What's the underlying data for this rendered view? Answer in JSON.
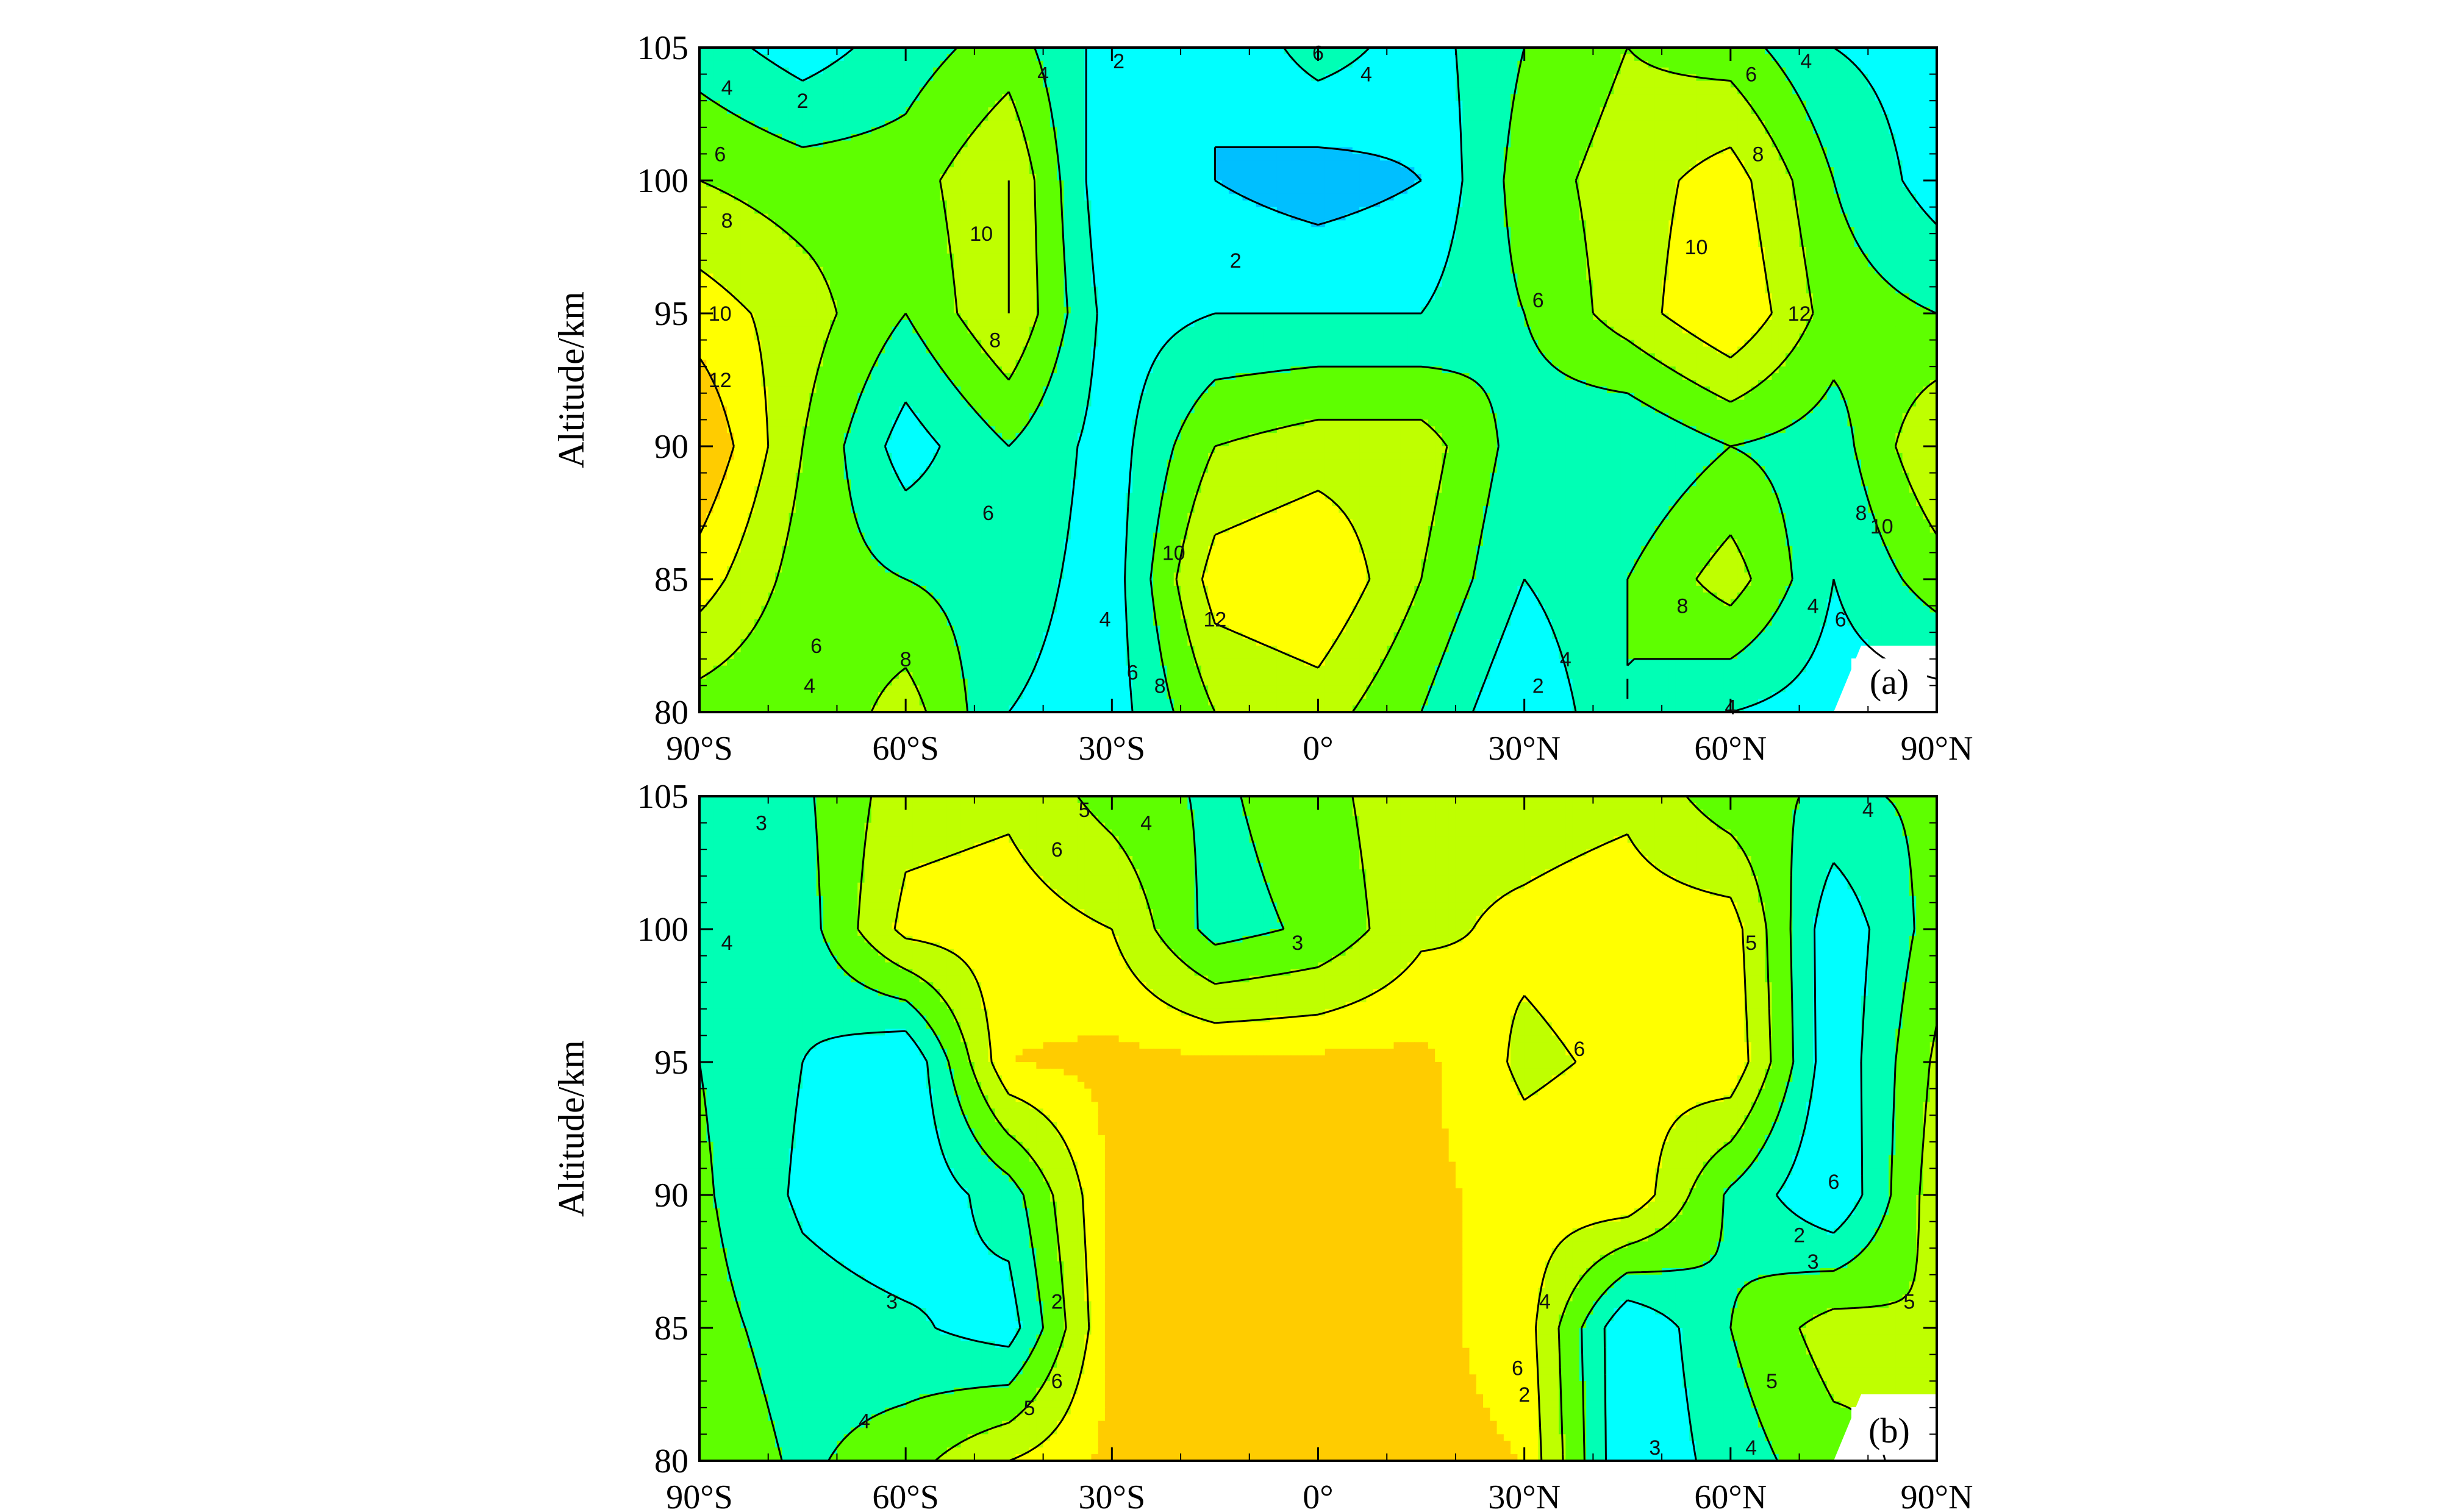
{
  "chart_data": [
    {
      "type": "contour",
      "panel_label": "(a)",
      "xlabel": "",
      "ylabel": "Altitude/km",
      "x_ticks": [
        "90°S",
        "60°S",
        "30°S",
        "0°",
        "30°N",
        "60°N",
        "90°N"
      ],
      "y_ticks": [
        "80",
        "85",
        "90",
        "95",
        "100",
        "105"
      ],
      "xlim": [
        -90,
        90
      ],
      "ylim": [
        80,
        105
      ],
      "contour_levels": [
        2,
        4,
        6,
        8,
        10,
        12
      ],
      "contour_labels": [
        {
          "text": "2",
          "lat": -75,
          "alt": 103.0
        },
        {
          "text": "4",
          "lat": -86,
          "alt": 103.5
        },
        {
          "text": "6",
          "lat": -87,
          "alt": 101.0
        },
        {
          "text": "8",
          "lat": -86,
          "alt": 98.5
        },
        {
          "text": "10",
          "lat": -87,
          "alt": 95.0
        },
        {
          "text": "12",
          "lat": -87,
          "alt": 92.5
        },
        {
          "text": "10",
          "lat": -49,
          "alt": 98.0
        },
        {
          "text": "8",
          "lat": -47,
          "alt": 94.0
        },
        {
          "text": "6",
          "lat": -48,
          "alt": 87.5
        },
        {
          "text": "8",
          "lat": -60,
          "alt": 82.0
        },
        {
          "text": "6",
          "lat": -73,
          "alt": 82.5
        },
        {
          "text": "4",
          "lat": -74,
          "alt": 81.0
        },
        {
          "text": "4",
          "lat": -40,
          "alt": 104.0
        },
        {
          "text": "2",
          "lat": -29,
          "alt": 104.5
        },
        {
          "text": "6",
          "lat": 0,
          "alt": 104.8
        },
        {
          "text": "4",
          "lat": 7,
          "alt": 104.0
        },
        {
          "text": "2",
          "lat": -12,
          "alt": 97.0
        },
        {
          "text": "4",
          "lat": -31,
          "alt": 83.5
        },
        {
          "text": "6",
          "lat": -27,
          "alt": 81.5
        },
        {
          "text": "8",
          "lat": -23,
          "alt": 81.0
        },
        {
          "text": "10",
          "lat": -21,
          "alt": 86.0
        },
        {
          "text": "12",
          "lat": -15,
          "alt": 83.5
        },
        {
          "text": "2",
          "lat": 32,
          "alt": 81.0
        },
        {
          "text": "4",
          "lat": 36,
          "alt": 82.0
        },
        {
          "text": "6",
          "lat": 32,
          "alt": 95.5
        },
        {
          "text": "10",
          "lat": 55,
          "alt": 97.5
        },
        {
          "text": "12",
          "lat": 70,
          "alt": 95.0
        },
        {
          "text": "8",
          "lat": 53,
          "alt": 84.0
        },
        {
          "text": "6",
          "lat": 63,
          "alt": 104.0
        },
        {
          "text": "4",
          "lat": 71,
          "alt": 104.5
        },
        {
          "text": "8",
          "lat": 64,
          "alt": 101.0
        },
        {
          "text": "4",
          "lat": 72,
          "alt": 84.0
        },
        {
          "text": "6",
          "lat": 76,
          "alt": 83.5
        },
        {
          "text": "8",
          "lat": 79,
          "alt": 87.5
        },
        {
          "text": "10",
          "lat": 82,
          "alt": 87.0
        },
        {
          "text": "4",
          "lat": 60,
          "alt": 80.2
        }
      ],
      "field": {
        "lat": [
          -90,
          -75,
          -60,
          -45,
          -30,
          -15,
          0,
          15,
          30,
          45,
          60,
          75,
          90
        ],
        "alt": [
          80,
          85,
          90,
          95,
          100,
          105
        ],
        "values": [
          [
            7,
            6,
            9,
            4,
            3,
            8,
            9,
            6,
            2,
            6,
            4,
            3,
            3
          ],
          [
            11,
            7,
            6,
            5,
            3,
            11,
            12,
            8,
            4,
            6,
            9,
            4,
            7
          ],
          [
            14,
            8,
            3,
            6,
            3,
            8,
            9,
            9,
            5,
            4,
            6,
            5,
            10
          ],
          [
            11,
            9,
            6,
            10,
            3,
            4,
            4,
            4,
            6,
            9,
            12,
            7,
            6
          ],
          [
            8,
            7,
            7,
            10,
            2,
            2,
            1,
            2,
            7,
            9,
            11,
            6,
            3
          ],
          [
            5,
            3,
            5,
            7,
            3,
            2,
            5,
            3,
            6,
            8,
            7,
            4,
            3
          ]
        ]
      }
    },
    {
      "type": "contour",
      "panel_label": "(b)",
      "xlabel": "",
      "ylabel": "Altitude/km",
      "x_ticks": [
        "90°S",
        "60°S",
        "30°S",
        "0°",
        "30°N",
        "60°N",
        "90°N"
      ],
      "y_ticks": [
        "80",
        "85",
        "90",
        "95",
        "100",
        "105"
      ],
      "xlim": [
        -90,
        90
      ],
      "ylim": [
        80,
        105
      ],
      "contour_levels": [
        2,
        3,
        4,
        5,
        6
      ],
      "contour_labels": [
        {
          "text": "3",
          "lat": -81,
          "alt": 104.0
        },
        {
          "text": "4",
          "lat": -86,
          "alt": 99.5
        },
        {
          "text": "3",
          "lat": -62,
          "alt": 86.0
        },
        {
          "text": "4",
          "lat": -66,
          "alt": 81.5
        },
        {
          "text": "5",
          "lat": -42,
          "alt": 82.0
        },
        {
          "text": "6",
          "lat": -38,
          "alt": 83.0
        },
        {
          "text": "2",
          "lat": -38,
          "alt": 86.0
        },
        {
          "text": "6",
          "lat": -38,
          "alt": 103.0
        },
        {
          "text": "5",
          "lat": -34,
          "alt": 104.5
        },
        {
          "text": "4",
          "lat": -25,
          "alt": 104.0
        },
        {
          "text": "3",
          "lat": -3,
          "alt": 99.5
        },
        {
          "text": "6",
          "lat": 38,
          "alt": 95.5
        },
        {
          "text": "6",
          "lat": 29,
          "alt": 83.5
        },
        {
          "text": "4",
          "lat": 33,
          "alt": 86.0
        },
        {
          "text": "2",
          "lat": 30,
          "alt": 82.5
        },
        {
          "text": "3",
          "lat": 49,
          "alt": 80.5
        },
        {
          "text": "4",
          "lat": 63,
          "alt": 80.5
        },
        {
          "text": "5",
          "lat": 63,
          "alt": 99.5
        },
        {
          "text": "6",
          "lat": 75,
          "alt": 90.5
        },
        {
          "text": "2",
          "lat": 70,
          "alt": 88.5
        },
        {
          "text": "3",
          "lat": 72,
          "alt": 87.5
        },
        {
          "text": "5",
          "lat": 66,
          "alt": 83.0
        },
        {
          "text": "5",
          "lat": 86,
          "alt": 86.0
        },
        {
          "text": "4",
          "lat": 80,
          "alt": 104.5
        }
      ],
      "field": {
        "lat": [
          -90,
          -75,
          -60,
          -45,
          -30,
          -15,
          0,
          15,
          30,
          45,
          60,
          75,
          90
        ],
        "alt": [
          80,
          85,
          90,
          95,
          100,
          105
        ],
        "values": [
          [
            4.8,
            3.8,
            4.6,
            6.0,
            7.0,
            7.0,
            7.0,
            7.0,
            6.8,
            2.0,
            3.5,
            4.6,
            5.4
          ],
          [
            4.4,
            3.5,
            3.2,
            2.5,
            7.0,
            7.0,
            7.0,
            7.0,
            6.5,
            2.0,
            4.0,
            5.5,
            5.0
          ],
          [
            4.2,
            2.8,
            2.2,
            3.5,
            7.0,
            7.0,
            7.0,
            7.0,
            6.5,
            6.8,
            3.8,
            2.0,
            5.6
          ],
          [
            4.0,
            3.0,
            2.0,
            6.8,
            7.0,
            7.0,
            7.0,
            7.0,
            5.8,
            6.2,
            6.8,
            2.2,
            5.2
          ],
          [
            4.0,
            3.5,
            6.3,
            6.5,
            6.0,
            3.6,
            4.2,
            5.8,
            6.2,
            6.5,
            6.5,
            2.2,
            4.5
          ],
          [
            3.6,
            3.8,
            5.6,
            5.8,
            4.6,
            3.8,
            4.6,
            5.8,
            5.6,
            5.8,
            4.4,
            3.8,
            4.2
          ]
        ]
      }
    }
  ]
}
